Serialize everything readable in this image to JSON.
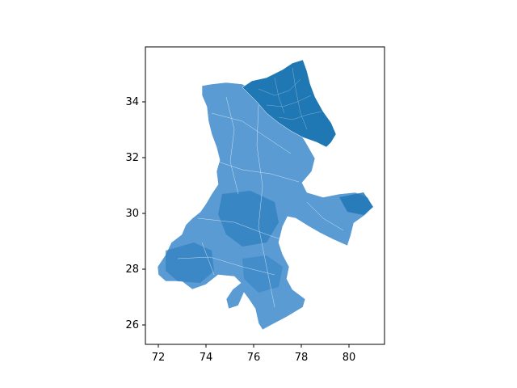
{
  "figure": {
    "type": "map",
    "subject": "choropleth-style region map with many small polygon subdivisions"
  },
  "colors": {
    "region_dark": "#1f77b4",
    "region_light": "#5a9bd3",
    "axis": "#000000",
    "background": "#ffffff"
  },
  "axes": {
    "x_ticks": [
      "72",
      "74",
      "76",
      "78",
      "80"
    ],
    "y_ticks": [
      "26",
      "28",
      "30",
      "32",
      "34"
    ],
    "x_range": [
      71.5,
      81.4
    ],
    "y_range": [
      25.4,
      35.9
    ]
  },
  "chart_data": {
    "type": "map",
    "x_ticks": [
      72,
      74,
      76,
      78,
      80
    ],
    "y_ticks": [
      26,
      28,
      30,
      32,
      34
    ],
    "xlim": [
      71.5,
      81.4
    ],
    "ylim": [
      25.4,
      35.9
    ],
    "grid": false,
    "legend": "none"
  }
}
